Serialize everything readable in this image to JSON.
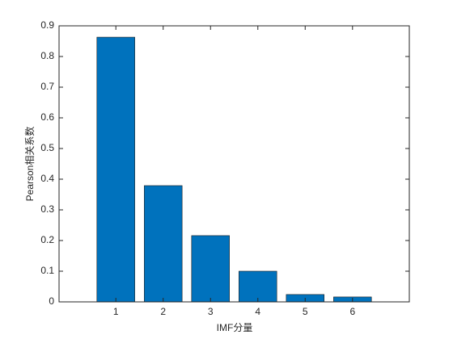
{
  "chart_data": {
    "type": "bar",
    "xlabel": "IMF分量",
    "ylabel": "Pearson相关系数",
    "x": [
      1,
      2,
      3,
      4,
      5,
      6
    ],
    "values": [
      0.863,
      0.379,
      0.216,
      0.1,
      0.024,
      0.016
    ],
    "color": "#0072bd",
    "xlim": [
      -0.2,
      7.2
    ],
    "xticks": [
      1,
      2,
      3,
      4,
      5,
      6
    ],
    "ylim": [
      0,
      0.9
    ],
    "yticks": [
      0,
      0.1,
      0.2,
      0.3,
      0.4,
      0.5,
      0.6,
      0.7,
      0.8,
      0.9
    ],
    "grid": false
  }
}
